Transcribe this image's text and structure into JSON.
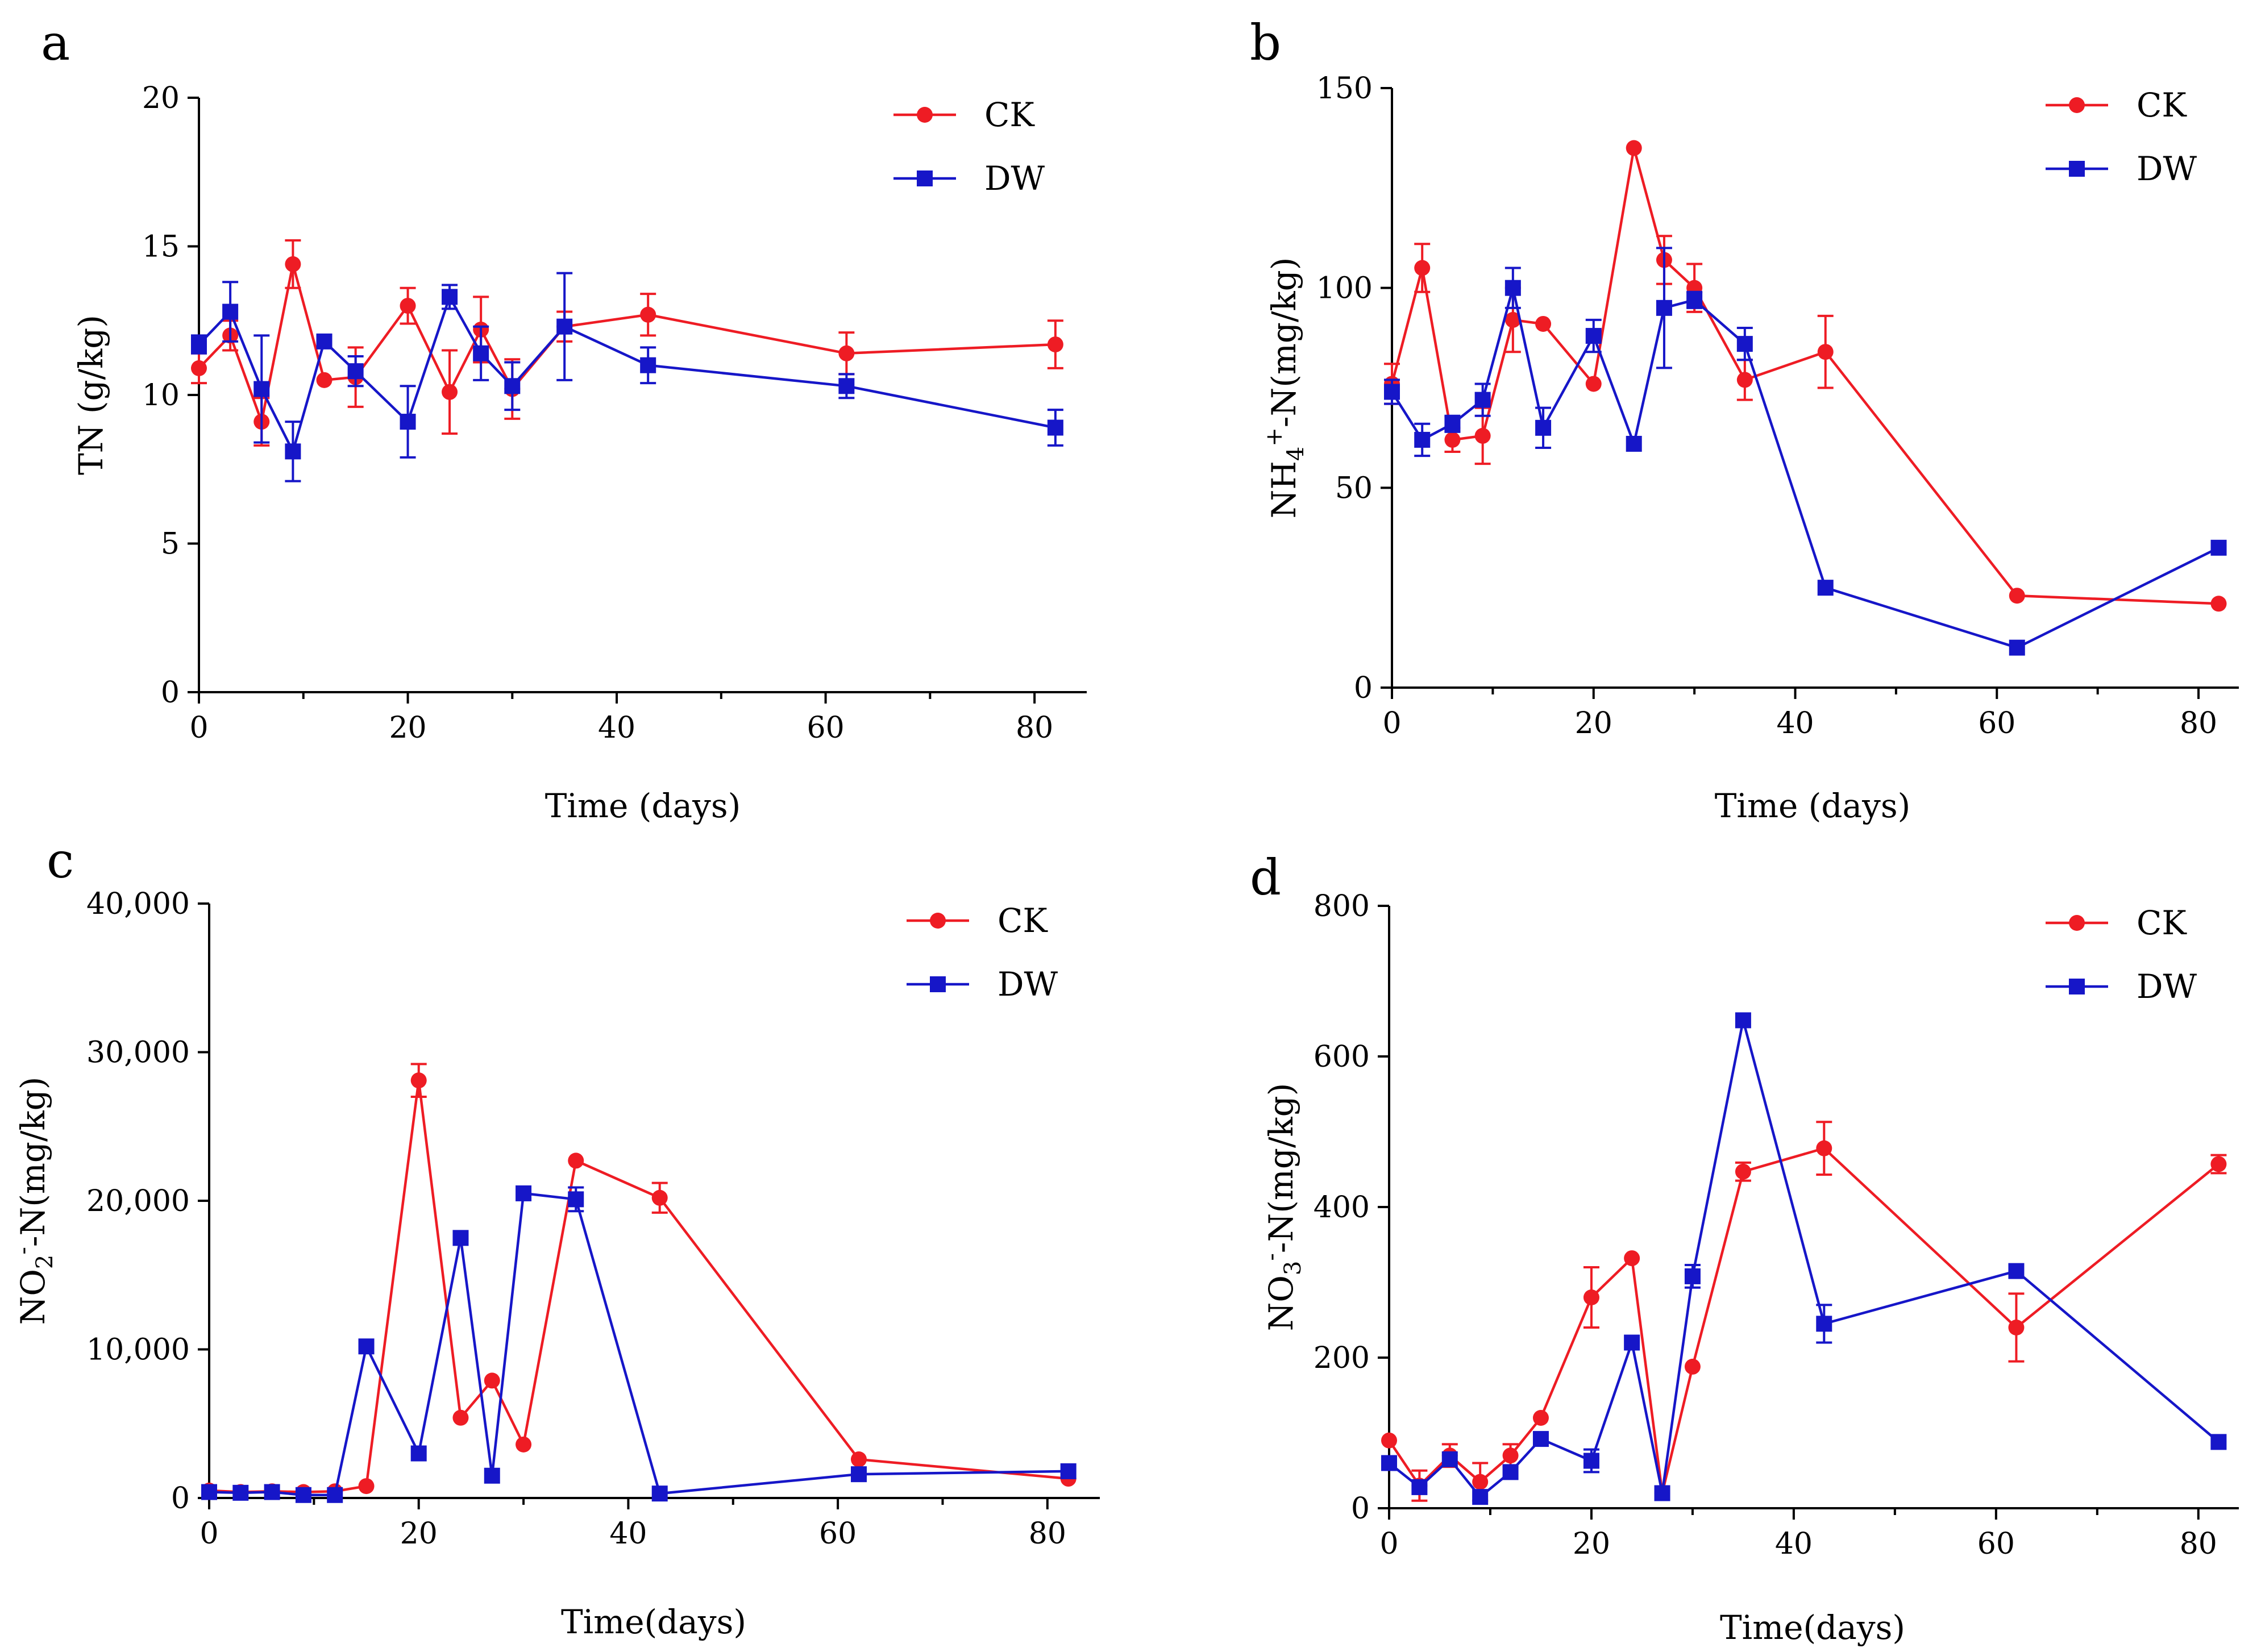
{
  "colors": {
    "ck": "#ee1c24",
    "dw": "#1616c8",
    "axis": "#000000"
  },
  "chart_data": [
    {
      "panel": "a",
      "type": "line",
      "ylabel_parts": [
        {
          "t": "TN (g/kg)",
          "s": ""
        }
      ],
      "xlabel": "Time (days)",
      "xlim": [
        0,
        85
      ],
      "ylim": [
        0,
        20
      ],
      "xticks": [
        0,
        20,
        40,
        60,
        80
      ],
      "xtick_labels": [
        "0",
        "20",
        "40",
        "60",
        "80"
      ],
      "yticks": [
        0,
        5,
        10,
        15,
        20
      ],
      "ytick_labels": [
        "0",
        "5",
        "10",
        "15",
        "20"
      ],
      "legend": "top-right",
      "series": [
        {
          "name": "CK",
          "marker": "circle",
          "x": [
            0,
            3,
            6,
            9,
            12,
            15,
            20,
            24,
            27,
            30,
            35,
            43,
            62,
            82
          ],
          "y": [
            10.9,
            12.0,
            9.1,
            14.4,
            10.5,
            10.6,
            13.0,
            10.1,
            12.2,
            10.2,
            12.3,
            12.7,
            11.4,
            11.7
          ],
          "err": [
            0.5,
            0.5,
            0.8,
            0.8,
            0,
            1.0,
            0.6,
            1.4,
            1.1,
            1.0,
            0.5,
            0.7,
            0.7,
            0.8
          ]
        },
        {
          "name": "DW",
          "marker": "square",
          "x": [
            0,
            3,
            6,
            9,
            12,
            15,
            20,
            24,
            27,
            30,
            35,
            43,
            62,
            82
          ],
          "y": [
            11.7,
            12.8,
            10.2,
            8.1,
            11.8,
            10.8,
            9.1,
            13.3,
            11.4,
            10.3,
            12.3,
            11.0,
            10.3,
            8.9
          ],
          "err": [
            0.3,
            1.0,
            1.8,
            1.0,
            0.2,
            0.5,
            1.2,
            0.4,
            0.9,
            0.8,
            1.8,
            0.6,
            0.4,
            0.6
          ]
        }
      ]
    },
    {
      "panel": "b",
      "type": "line",
      "ylabel_parts": [
        {
          "t": "NH",
          "s": ""
        },
        {
          "t": "4",
          "s": "sub"
        },
        {
          "t": "+",
          "s": "sup"
        },
        {
          "t": "-N(mg/kg)",
          "s": ""
        }
      ],
      "xlabel": "Time (days)",
      "xlim": [
        0,
        84
      ],
      "ylim": [
        0,
        150
      ],
      "xticks": [
        0,
        20,
        40,
        60,
        80
      ],
      "xtick_labels": [
        "0",
        "20",
        "40",
        "60",
        "80"
      ],
      "yticks": [
        0,
        50,
        100,
        150
      ],
      "ytick_labels": [
        "0",
        "50",
        "100",
        "150"
      ],
      "legend": "top-right",
      "series": [
        {
          "name": "CK",
          "marker": "circle",
          "x": [
            0,
            3,
            6,
            9,
            12,
            15,
            20,
            24,
            27,
            30,
            35,
            43,
            62,
            82
          ],
          "y": [
            76,
            105,
            62,
            63,
            92,
            91,
            76,
            135,
            107,
            100,
            77,
            84,
            23,
            21
          ],
          "err": [
            5,
            6,
            3,
            7,
            8,
            0,
            0,
            0,
            6,
            6,
            5,
            9,
            0,
            0
          ]
        },
        {
          "name": "DW",
          "marker": "square",
          "x": [
            0,
            3,
            6,
            9,
            12,
            15,
            20,
            24,
            27,
            30,
            35,
            43,
            62,
            82
          ],
          "y": [
            74,
            62,
            66,
            72,
            100,
            65,
            88,
            61,
            95,
            97,
            86,
            25,
            10,
            35
          ],
          "err": [
            3,
            4,
            2,
            4,
            5,
            5,
            4,
            0,
            15,
            2,
            4,
            0,
            0,
            0
          ]
        }
      ]
    },
    {
      "panel": "c",
      "type": "line",
      "ylabel_parts": [
        {
          "t": "NO",
          "s": ""
        },
        {
          "t": "2",
          "s": "sub"
        },
        {
          "t": "-",
          "s": "sup"
        },
        {
          "t": "-N(mg/kg)",
          "s": ""
        }
      ],
      "xlabel": "Time(days)",
      "xlim": [
        0,
        85
      ],
      "ylim": [
        0,
        40000
      ],
      "xticks": [
        0,
        20,
        40,
        60,
        80
      ],
      "xtick_labels": [
        "0",
        "20",
        "40",
        "60",
        "80"
      ],
      "yticks": [
        0,
        10000,
        20000,
        30000,
        40000
      ],
      "ytick_labels": [
        "0",
        "10,000",
        "20,000",
        "30,000",
        "40,000"
      ],
      "legend": "top-right",
      "series": [
        {
          "name": "CK",
          "marker": "circle",
          "x": [
            0,
            3,
            6,
            9,
            12,
            15,
            20,
            24,
            27,
            30,
            35,
            43,
            62,
            82
          ],
          "y": [
            500,
            400,
            450,
            400,
            450,
            800,
            28100,
            5400,
            7900,
            3600,
            22700,
            20200,
            2600,
            1300
          ],
          "err": [
            0,
            0,
            0,
            0,
            0,
            0,
            1100,
            0,
            0,
            0,
            0,
            1000,
            0,
            0
          ]
        },
        {
          "name": "DW",
          "marker": "square",
          "x": [
            0,
            3,
            6,
            9,
            12,
            15,
            20,
            24,
            27,
            30,
            35,
            43,
            62,
            82
          ],
          "y": [
            400,
            350,
            400,
            200,
            200,
            10200,
            3000,
            17500,
            1500,
            20500,
            20100,
            300,
            1600,
            1800
          ],
          "err": [
            0,
            0,
            0,
            0,
            0,
            0,
            0,
            0,
            0,
            0,
            800,
            0,
            0,
            0
          ]
        }
      ]
    },
    {
      "panel": "d",
      "type": "line",
      "ylabel_parts": [
        {
          "t": "NO",
          "s": ""
        },
        {
          "t": "3",
          "s": "sub"
        },
        {
          "t": "-",
          "s": "sup"
        },
        {
          "t": "-N(mg/kg)",
          "s": ""
        }
      ],
      "xlabel": "Time(days)",
      "xlim": [
        0,
        84
      ],
      "ylim": [
        0,
        800
      ],
      "xticks": [
        0,
        20,
        40,
        60,
        80
      ],
      "xtick_labels": [
        "0",
        "20",
        "40",
        "60",
        "80"
      ],
      "yticks": [
        0,
        200,
        400,
        600,
        800
      ],
      "ytick_labels": [
        "0",
        "200",
        "400",
        "600",
        "800"
      ],
      "legend": "top-right",
      "series": [
        {
          "name": "CK",
          "marker": "circle",
          "x": [
            0,
            3,
            6,
            9,
            12,
            15,
            20,
            24,
            27,
            30,
            35,
            43,
            62,
            82
          ],
          "y": [
            90,
            30,
            70,
            35,
            70,
            120,
            280,
            332,
            20,
            188,
            447,
            478,
            240,
            457
          ],
          "err": [
            0,
            20,
            15,
            25,
            15,
            0,
            40,
            0,
            0,
            0,
            12,
            35,
            45,
            12
          ]
        },
        {
          "name": "DW",
          "marker": "square",
          "x": [
            0,
            3,
            6,
            9,
            12,
            15,
            20,
            24,
            27,
            30,
            35,
            43,
            62,
            82
          ],
          "y": [
            60,
            28,
            65,
            15,
            48,
            92,
            63,
            220,
            20,
            308,
            648,
            245,
            315,
            88
          ],
          "err": [
            0,
            0,
            0,
            0,
            0,
            0,
            15,
            0,
            0,
            15,
            0,
            25,
            0,
            0
          ]
        }
      ]
    }
  ]
}
